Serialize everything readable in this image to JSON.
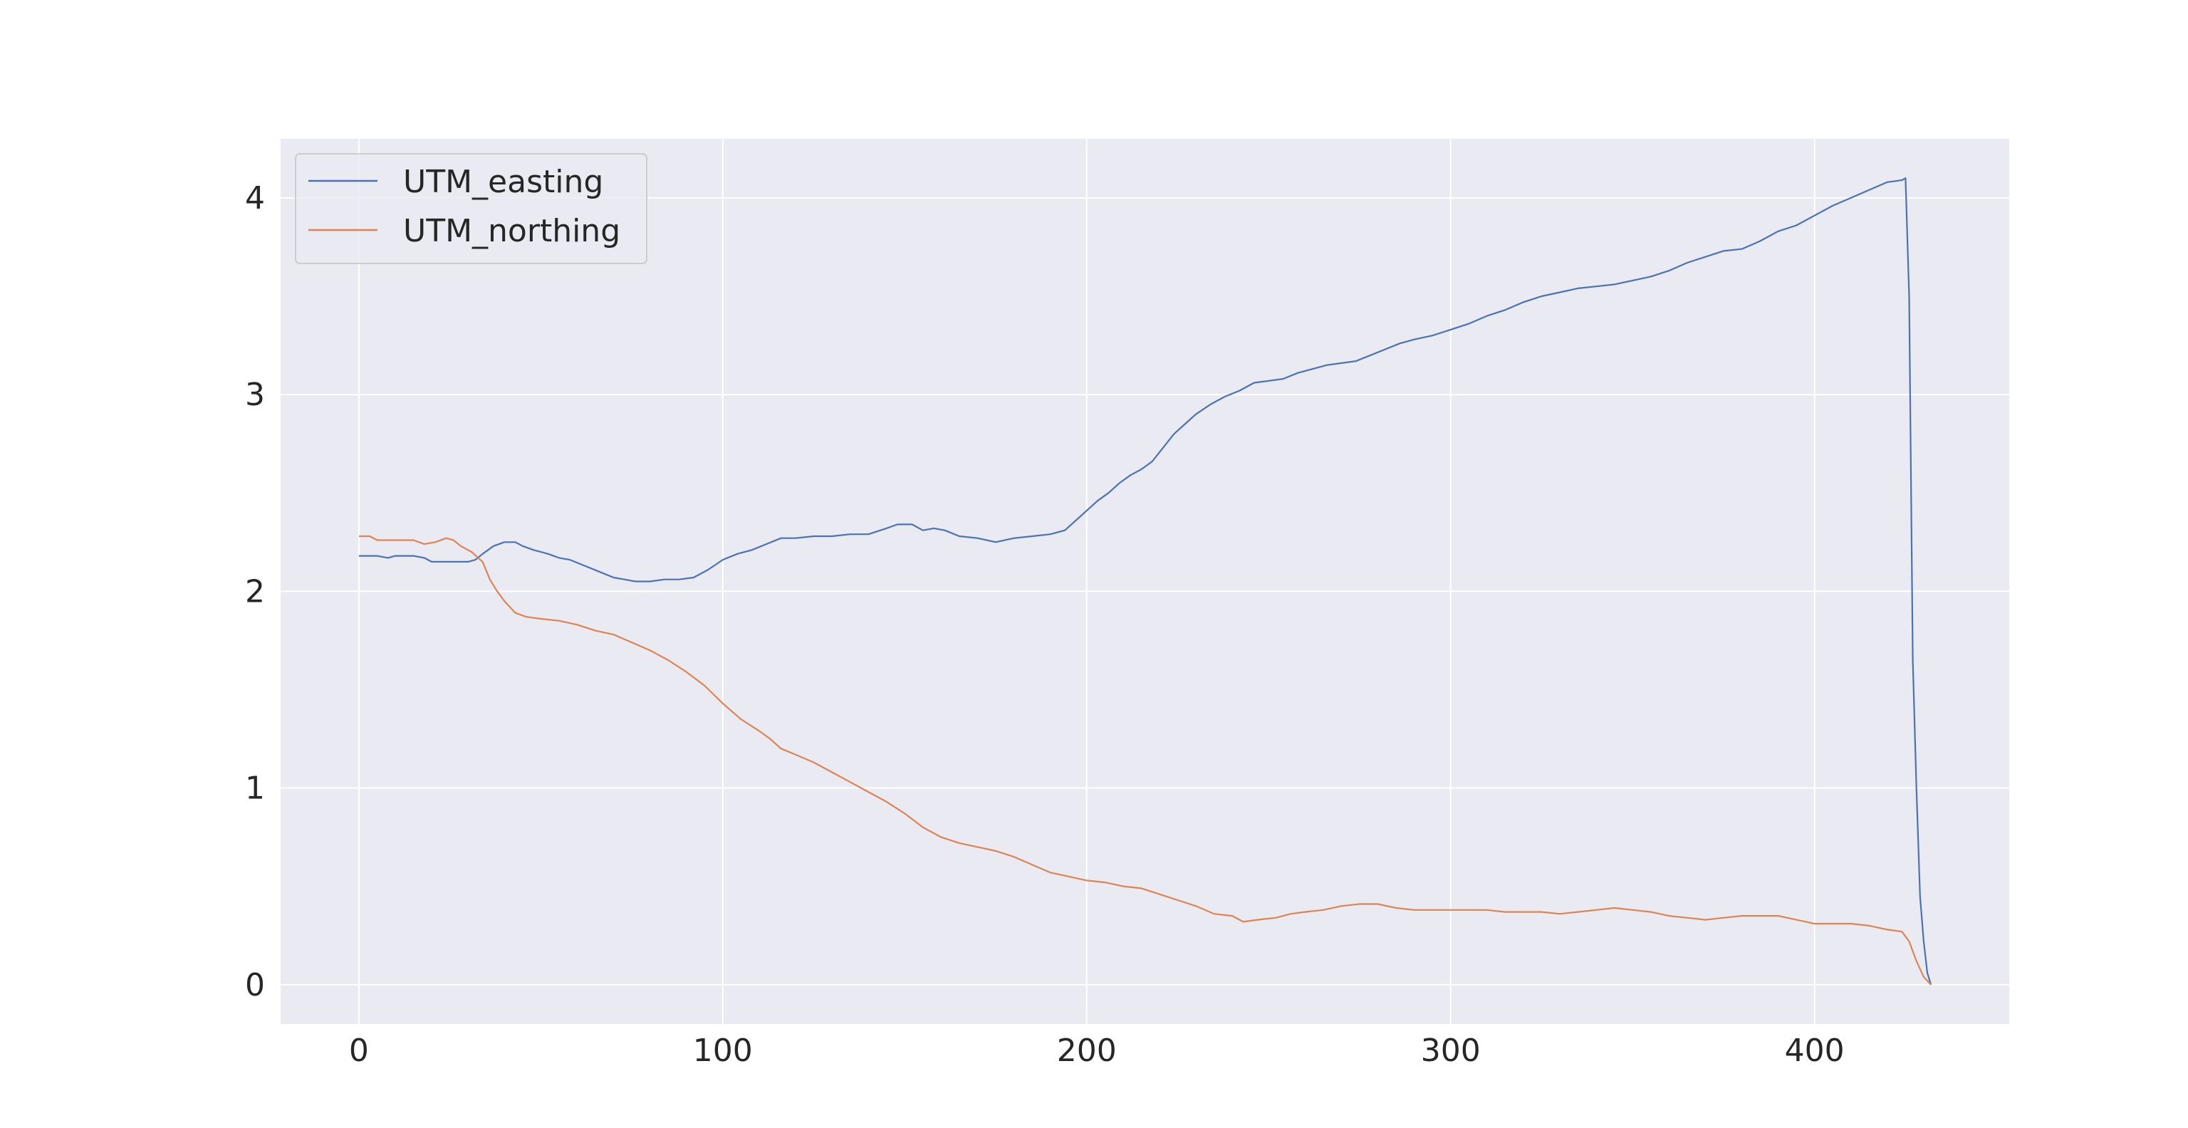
{
  "chart_data": {
    "type": "line",
    "title": "",
    "xlabel": "",
    "ylabel": "",
    "xlim": [
      -21.5,
      453.5
    ],
    "ylim": [
      -0.2,
      4.3
    ],
    "grid": true,
    "legend_position": "top-left",
    "xticks": [
      0,
      100,
      200,
      300,
      400
    ],
    "yticks": [
      0,
      1,
      2,
      3,
      4
    ],
    "series": [
      {
        "name": "UTM_easting",
        "color": "#4c72b0",
        "points": [
          [
            0,
            2.18
          ],
          [
            5,
            2.18
          ],
          [
            8,
            2.17
          ],
          [
            10,
            2.18
          ],
          [
            15,
            2.18
          ],
          [
            18,
            2.17
          ],
          [
            20,
            2.15
          ],
          [
            25,
            2.15
          ],
          [
            30,
            2.15
          ],
          [
            32,
            2.16
          ],
          [
            34,
            2.19
          ],
          [
            37,
            2.23
          ],
          [
            40,
            2.25
          ],
          [
            43,
            2.25
          ],
          [
            45,
            2.23
          ],
          [
            48,
            2.21
          ],
          [
            52,
            2.19
          ],
          [
            55,
            2.17
          ],
          [
            58,
            2.16
          ],
          [
            62,
            2.13
          ],
          [
            66,
            2.1
          ],
          [
            70,
            2.07
          ],
          [
            73,
            2.06
          ],
          [
            76,
            2.05
          ],
          [
            80,
            2.05
          ],
          [
            84,
            2.06
          ],
          [
            88,
            2.06
          ],
          [
            92,
            2.07
          ],
          [
            96,
            2.11
          ],
          [
            100,
            2.16
          ],
          [
            104,
            2.19
          ],
          [
            108,
            2.21
          ],
          [
            112,
            2.24
          ],
          [
            116,
            2.27
          ],
          [
            120,
            2.27
          ],
          [
            125,
            2.28
          ],
          [
            130,
            2.28
          ],
          [
            135,
            2.29
          ],
          [
            140,
            2.29
          ],
          [
            145,
            2.32
          ],
          [
            148,
            2.34
          ],
          [
            152,
            2.34
          ],
          [
            155,
            2.31
          ],
          [
            158,
            2.32
          ],
          [
            161,
            2.31
          ],
          [
            165,
            2.28
          ],
          [
            170,
            2.27
          ],
          [
            175,
            2.25
          ],
          [
            180,
            2.27
          ],
          [
            185,
            2.28
          ],
          [
            190,
            2.29
          ],
          [
            194,
            2.31
          ],
          [
            197,
            2.36
          ],
          [
            200,
            2.41
          ],
          [
            203,
            2.46
          ],
          [
            206,
            2.5
          ],
          [
            209,
            2.55
          ],
          [
            212,
            2.59
          ],
          [
            215,
            2.62
          ],
          [
            218,
            2.66
          ],
          [
            221,
            2.73
          ],
          [
            224,
            2.8
          ],
          [
            227,
            2.85
          ],
          [
            230,
            2.9
          ],
          [
            234,
            2.95
          ],
          [
            238,
            2.99
          ],
          [
            242,
            3.02
          ],
          [
            246,
            3.06
          ],
          [
            250,
            3.07
          ],
          [
            254,
            3.08
          ],
          [
            258,
            3.11
          ],
          [
            262,
            3.13
          ],
          [
            266,
            3.15
          ],
          [
            270,
            3.16
          ],
          [
            274,
            3.17
          ],
          [
            278,
            3.2
          ],
          [
            282,
            3.23
          ],
          [
            286,
            3.26
          ],
          [
            290,
            3.28
          ],
          [
            295,
            3.3
          ],
          [
            300,
            3.33
          ],
          [
            305,
            3.36
          ],
          [
            310,
            3.4
          ],
          [
            315,
            3.43
          ],
          [
            320,
            3.47
          ],
          [
            325,
            3.5
          ],
          [
            330,
            3.52
          ],
          [
            335,
            3.54
          ],
          [
            340,
            3.55
          ],
          [
            345,
            3.56
          ],
          [
            350,
            3.58
          ],
          [
            355,
            3.6
          ],
          [
            360,
            3.63
          ],
          [
            365,
            3.67
          ],
          [
            370,
            3.7
          ],
          [
            375,
            3.73
          ],
          [
            380,
            3.74
          ],
          [
            385,
            3.78
          ],
          [
            390,
            3.83
          ],
          [
            395,
            3.86
          ],
          [
            400,
            3.91
          ],
          [
            405,
            3.96
          ],
          [
            410,
            4.0
          ],
          [
            415,
            4.04
          ],
          [
            420,
            4.08
          ],
          [
            424,
            4.09
          ],
          [
            425,
            4.1
          ],
          [
            426,
            3.5
          ],
          [
            427,
            1.65
          ],
          [
            428,
            1.0
          ],
          [
            429,
            0.45
          ],
          [
            430,
            0.22
          ],
          [
            431,
            0.06
          ],
          [
            432,
            0.0
          ]
        ]
      },
      {
        "name": "UTM_northing",
        "color": "#dd8452",
        "points": [
          [
            0,
            2.28
          ],
          [
            3,
            2.28
          ],
          [
            5,
            2.26
          ],
          [
            10,
            2.26
          ],
          [
            15,
            2.26
          ],
          [
            18,
            2.24
          ],
          [
            21,
            2.25
          ],
          [
            24,
            2.27
          ],
          [
            26,
            2.26
          ],
          [
            28,
            2.23
          ],
          [
            31,
            2.2
          ],
          [
            34,
            2.15
          ],
          [
            36,
            2.06
          ],
          [
            38,
            2.0
          ],
          [
            40,
            1.95
          ],
          [
            43,
            1.89
          ],
          [
            46,
            1.87
          ],
          [
            50,
            1.86
          ],
          [
            55,
            1.85
          ],
          [
            60,
            1.83
          ],
          [
            65,
            1.8
          ],
          [
            70,
            1.78
          ],
          [
            75,
            1.74
          ],
          [
            80,
            1.7
          ],
          [
            85,
            1.65
          ],
          [
            90,
            1.59
          ],
          [
            95,
            1.52
          ],
          [
            100,
            1.43
          ],
          [
            105,
            1.35
          ],
          [
            110,
            1.29
          ],
          [
            113,
            1.25
          ],
          [
            116,
            1.2
          ],
          [
            120,
            1.17
          ],
          [
            125,
            1.13
          ],
          [
            130,
            1.08
          ],
          [
            135,
            1.03
          ],
          [
            140,
            0.98
          ],
          [
            145,
            0.93
          ],
          [
            150,
            0.87
          ],
          [
            155,
            0.8
          ],
          [
            160,
            0.75
          ],
          [
            165,
            0.72
          ],
          [
            170,
            0.7
          ],
          [
            175,
            0.68
          ],
          [
            180,
            0.65
          ],
          [
            185,
            0.61
          ],
          [
            190,
            0.57
          ],
          [
            195,
            0.55
          ],
          [
            200,
            0.53
          ],
          [
            205,
            0.52
          ],
          [
            210,
            0.5
          ],
          [
            215,
            0.49
          ],
          [
            220,
            0.46
          ],
          [
            225,
            0.43
          ],
          [
            230,
            0.4
          ],
          [
            235,
            0.36
          ],
          [
            240,
            0.35
          ],
          [
            243,
            0.32
          ],
          [
            247,
            0.33
          ],
          [
            252,
            0.34
          ],
          [
            256,
            0.36
          ],
          [
            260,
            0.37
          ],
          [
            265,
            0.38
          ],
          [
            270,
            0.4
          ],
          [
            275,
            0.41
          ],
          [
            280,
            0.41
          ],
          [
            285,
            0.39
          ],
          [
            290,
            0.38
          ],
          [
            295,
            0.38
          ],
          [
            300,
            0.38
          ],
          [
            305,
            0.38
          ],
          [
            310,
            0.38
          ],
          [
            315,
            0.37
          ],
          [
            320,
            0.37
          ],
          [
            325,
            0.37
          ],
          [
            330,
            0.36
          ],
          [
            335,
            0.37
          ],
          [
            340,
            0.38
          ],
          [
            345,
            0.39
          ],
          [
            350,
            0.38
          ],
          [
            355,
            0.37
          ],
          [
            360,
            0.35
          ],
          [
            365,
            0.34
          ],
          [
            370,
            0.33
          ],
          [
            375,
            0.34
          ],
          [
            380,
            0.35
          ],
          [
            385,
            0.35
          ],
          [
            390,
            0.35
          ],
          [
            395,
            0.33
          ],
          [
            400,
            0.31
          ],
          [
            405,
            0.31
          ],
          [
            410,
            0.31
          ],
          [
            415,
            0.3
          ],
          [
            420,
            0.28
          ],
          [
            424,
            0.27
          ],
          [
            426,
            0.22
          ],
          [
            428,
            0.12
          ],
          [
            430,
            0.04
          ],
          [
            432,
            0.0
          ]
        ]
      }
    ]
  }
}
